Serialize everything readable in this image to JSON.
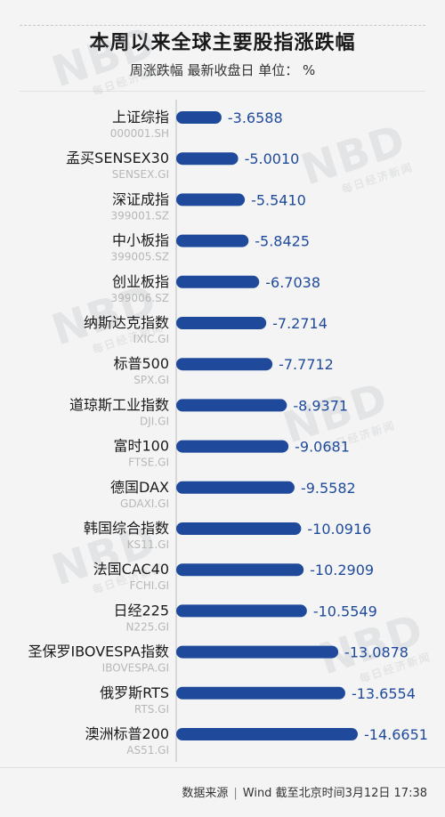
{
  "header": {
    "title": "本周以来全球主要股指涨跌幅",
    "subtitle": "周涨跌幅 最新收盘日 单位：  %"
  },
  "watermark": {
    "main": "NBD",
    "sub": "每日经济新闻"
  },
  "footer": {
    "source": "数据来源",
    "provider": "Wind",
    "date_note": "截至北京时间3月12日 17:38"
  },
  "colors": {
    "bar": "#1f4a9c",
    "value_text": "#1f4a9c",
    "name_text": "#1a1a1a",
    "code_text": "#b7b7b7",
    "axis": "#bdbdbd"
  },
  "chart_data": {
    "type": "bar",
    "orientation": "horizontal",
    "categories": [
      "上证综指",
      "孟买SENSEX30",
      "深证成指",
      "中小板指",
      "创业板指",
      "纳斯达克指数",
      "标普500",
      "道琼斯工业指数",
      "富时100",
      "德国DAX",
      "韩国综合指数",
      "法国CAC40",
      "日经225",
      "圣保罗IBOVESPA指数",
      "俄罗斯RTS",
      "澳洲标普200"
    ],
    "codes": [
      "000001.SH",
      "SENSEX.GI",
      "399001.SZ",
      "399005.SZ",
      "399006.SZ",
      "IXIC.GI",
      "SPX.GI",
      "DJI.GI",
      "FTSE.GI",
      "GDAXI.GI",
      "KS11.GI",
      "FCHI.GI",
      "N225.GI",
      "IBOVESPA.GI",
      "RTS.GI",
      "AS51.GI"
    ],
    "values": [
      -3.6588,
      -5.001,
      -5.541,
      -5.8425,
      -6.7038,
      -7.2714,
      -7.7712,
      -8.9371,
      -9.0681,
      -9.5582,
      -10.0916,
      -10.2909,
      -10.5549,
      -13.0878,
      -13.6554,
      -14.6651
    ],
    "value_labels": [
      "-3.6588",
      "-5.0010",
      "-5.5410",
      "-5.8425",
      "-6.7038",
      "-7.2714",
      "-7.7712",
      "-8.9371",
      "-9.0681",
      "-9.5582",
      "-10.0916",
      "-10.2909",
      "-10.5549",
      "-13.0878",
      "-13.6554",
      "-14.6651"
    ],
    "title": "本周以来全球主要股指涨跌幅",
    "xlabel": "",
    "ylabel": "",
    "xlim": [
      0,
      -14.6651
    ],
    "grid": false
  }
}
